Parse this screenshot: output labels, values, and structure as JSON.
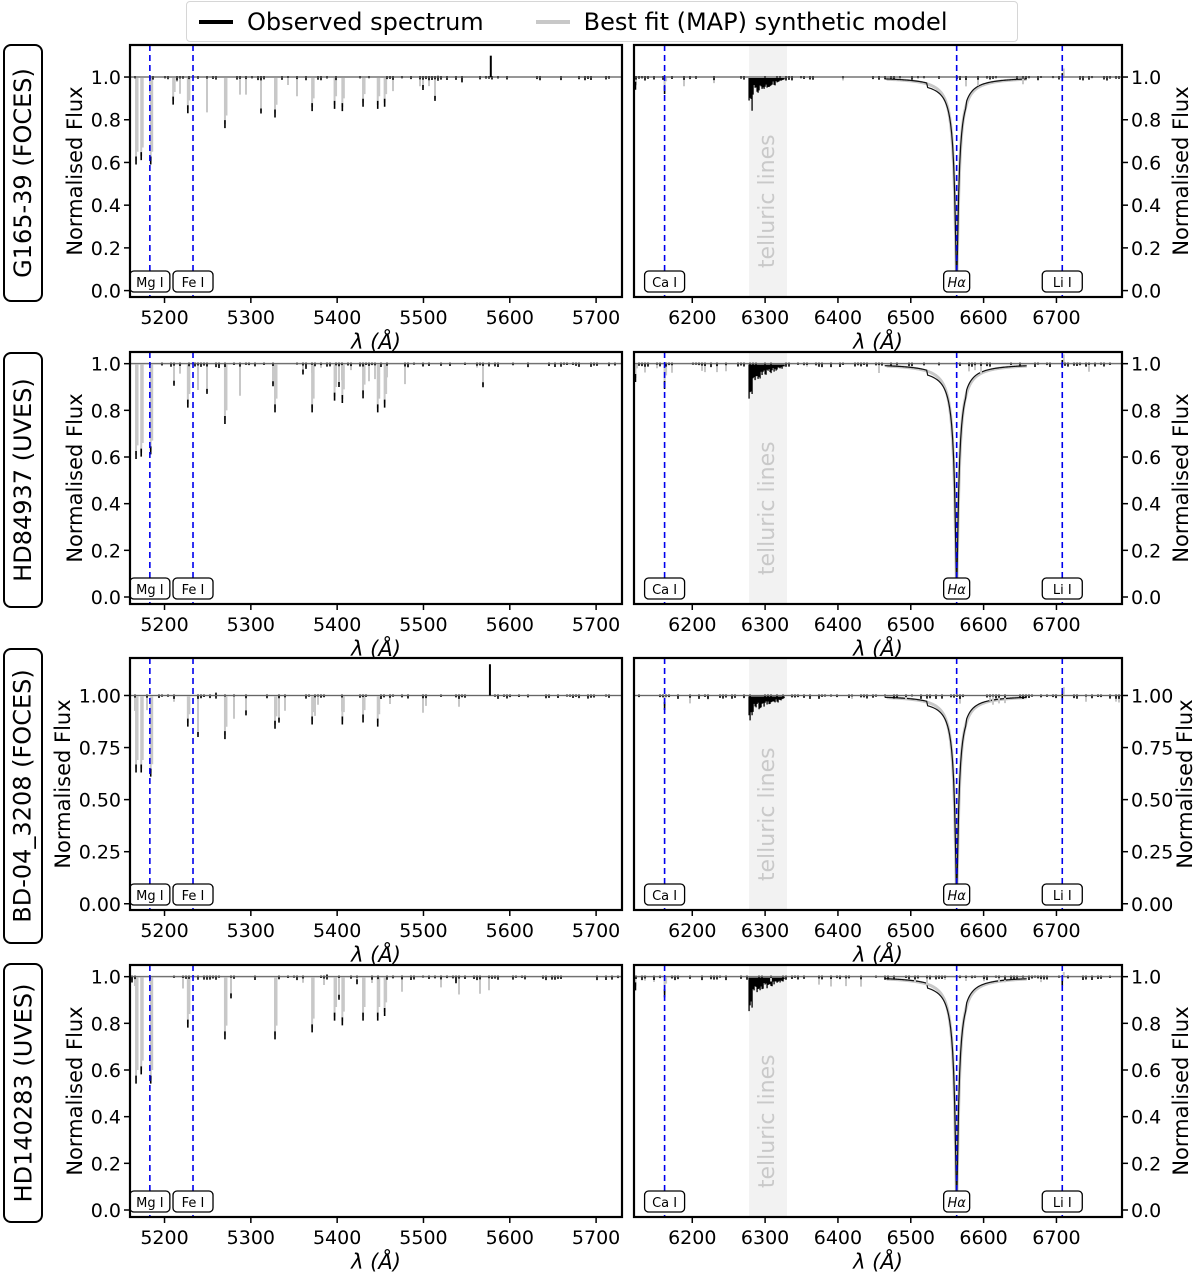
{
  "legend": {
    "observed": {
      "label": "Observed spectrum",
      "color": "#000000"
    },
    "model": {
      "label": "Best fit (MAP) synthetic model",
      "color": "#c8c8c8"
    }
  },
  "axes": {
    "xlabel": "λ (Å)",
    "ylabel": "Normalised Flux",
    "left_xticks": [
      "5200",
      "5300",
      "5400",
      "5500",
      "5600",
      "5700"
    ],
    "right_xticks": [
      "6200",
      "6300",
      "6400",
      "6500",
      "6600",
      "6700"
    ],
    "telluric_label": "telluric lines",
    "line_markers_left": [
      {
        "label": "Mg I",
        "wavelength": 5183
      },
      {
        "label": "Fe I",
        "wavelength": 5233
      }
    ],
    "line_markers_right": [
      {
        "label": "Ca I",
        "wavelength": 6162
      },
      {
        "label": "Hα",
        "wavelength": 6563
      },
      {
        "label": "Li I",
        "wavelength": 6708
      }
    ],
    "marker_color": "#0000ee",
    "telluric_color": "#f2f2f2"
  },
  "rows": [
    {
      "star": "G165-39 (FOCES)",
      "yticks": [
        "0.0",
        "0.2",
        "0.4",
        "0.6",
        "0.8",
        "1.0"
      ]
    },
    {
      "star": "HD84937 (UVES)",
      "yticks": [
        "0.0",
        "0.2",
        "0.4",
        "0.6",
        "0.8",
        "1.0"
      ]
    },
    {
      "star": "BD-04_3208 (FOCES)",
      "yticks": [
        "0.00",
        "0.25",
        "0.50",
        "0.75",
        "1.00"
      ]
    },
    {
      "star": "HD140283 (UVES)",
      "yticks": [
        "0.0",
        "0.2",
        "0.4",
        "0.6",
        "0.8",
        "1.0"
      ]
    }
  ],
  "chart_data": [
    {
      "type": "line",
      "title": "G165-39 (FOCES)",
      "panels": [
        {
          "xlim": [
            5160,
            5730
          ],
          "ylim": [
            0,
            1.15
          ],
          "xlabel": "λ (Å)",
          "ylabel": "Normalised Flux",
          "continuum": 1.0,
          "absorption_lines": [
            [
              5167,
              0.6
            ],
            [
              5173,
              0.62
            ],
            [
              5184,
              0.6
            ],
            [
              5210,
              0.88
            ],
            [
              5227,
              0.84
            ],
            [
              5270,
              0.77
            ],
            [
              5328,
              0.82
            ],
            [
              5371,
              0.85
            ],
            [
              5397,
              0.86
            ],
            [
              5406,
              0.85
            ],
            [
              5430,
              0.87
            ],
            [
              5447,
              0.86
            ],
            [
              5455,
              0.87
            ]
          ],
          "emission_spikes": [
            [
              5578,
              1.1
            ]
          ],
          "markers": [
            "Mg I",
            "Fe I"
          ]
        },
        {
          "xlim": [
            6120,
            6790
          ],
          "ylim": [
            0,
            1.15
          ],
          "xlabel": "λ (Å)",
          "ylabel": "Normalised Flux",
          "continuum": 1.0,
          "telluric_band": [
            6278,
            6330
          ],
          "absorption_lines": [
            [
              6122,
              0.95
            ],
            [
              6162,
              0.93
            ],
            [
              6563,
              0.0
            ],
            [
              6708,
              0.99
            ]
          ],
          "markers": [
            "Ca I",
            "Hα",
            "Li I"
          ]
        }
      ]
    },
    {
      "type": "line",
      "title": "HD84937 (UVES)",
      "panels": [
        {
          "xlim": [
            5160,
            5730
          ],
          "ylim": [
            0,
            1.05
          ],
          "continuum": 1.0,
          "absorption_lines": [
            [
              5167,
              0.6
            ],
            [
              5173,
              0.61
            ],
            [
              5184,
              0.62
            ],
            [
              5227,
              0.82
            ],
            [
              5270,
              0.75
            ],
            [
              5328,
              0.8
            ],
            [
              5371,
              0.8
            ],
            [
              5397,
              0.85
            ],
            [
              5406,
              0.84
            ],
            [
              5430,
              0.86
            ],
            [
              5447,
              0.8
            ],
            [
              5455,
              0.82
            ]
          ],
          "markers": [
            "Mg I",
            "Fe I"
          ]
        },
        {
          "xlim": [
            6120,
            6790
          ],
          "ylim": [
            0,
            1.05
          ],
          "continuum": 1.0,
          "telluric_band": [
            6278,
            6330
          ],
          "absorption_lines": [
            [
              6122,
              0.93
            ],
            [
              6162,
              0.9
            ],
            [
              6563,
              0.0
            ],
            [
              6708,
              0.99
            ]
          ],
          "markers": [
            "Ca I",
            "Hα",
            "Li I"
          ]
        }
      ]
    },
    {
      "type": "line",
      "title": "BD-04_3208 (FOCES)",
      "panels": [
        {
          "xlim": [
            5160,
            5730
          ],
          "ylim": [
            0,
            1.18
          ],
          "continuum": 1.0,
          "absorption_lines": [
            [
              5167,
              0.64
            ],
            [
              5173,
              0.64
            ],
            [
              5184,
              0.62
            ],
            [
              5227,
              0.86
            ],
            [
              5270,
              0.8
            ],
            [
              5328,
              0.85
            ],
            [
              5371,
              0.87
            ],
            [
              5406,
              0.87
            ],
            [
              5430,
              0.88
            ],
            [
              5447,
              0.86
            ]
          ],
          "emission_spikes": [
            [
              5577,
              1.15
            ]
          ],
          "markers": [
            "Mg I",
            "Fe I"
          ]
        },
        {
          "xlim": [
            6120,
            6790
          ],
          "ylim": [
            0,
            1.18
          ],
          "continuum": 1.0,
          "telluric_band": [
            6278,
            6330
          ],
          "absorption_lines": [
            [
              6162,
              0.94
            ],
            [
              6563,
              0.0
            ],
            [
              6708,
              0.99
            ]
          ],
          "markers": [
            "Ca I",
            "Hα",
            "Li I"
          ]
        }
      ]
    },
    {
      "type": "line",
      "title": "HD140283 (UVES)",
      "panels": [
        {
          "xlim": [
            5160,
            5730
          ],
          "ylim": [
            0,
            1.05
          ],
          "continuum": 1.0,
          "absorption_lines": [
            [
              5167,
              0.55
            ],
            [
              5173,
              0.59
            ],
            [
              5184,
              0.55
            ],
            [
              5227,
              0.79
            ],
            [
              5270,
              0.74
            ],
            [
              5328,
              0.74
            ],
            [
              5371,
              0.77
            ],
            [
              5397,
              0.82
            ],
            [
              5406,
              0.8
            ],
            [
              5430,
              0.82
            ],
            [
              5447,
              0.82
            ],
            [
              5455,
              0.84
            ]
          ],
          "markers": [
            "Mg I",
            "Fe I"
          ]
        },
        {
          "xlim": [
            6120,
            6790
          ],
          "ylim": [
            0,
            1.05
          ],
          "continuum": 1.0,
          "telluric_band": [
            6278,
            6330
          ],
          "absorption_lines": [
            [
              6122,
              0.95
            ],
            [
              6162,
              0.92
            ],
            [
              6563,
              0.0
            ],
            [
              6708,
              0.97
            ]
          ],
          "markers": [
            "Ca I",
            "Hα",
            "Li I"
          ]
        }
      ]
    }
  ]
}
